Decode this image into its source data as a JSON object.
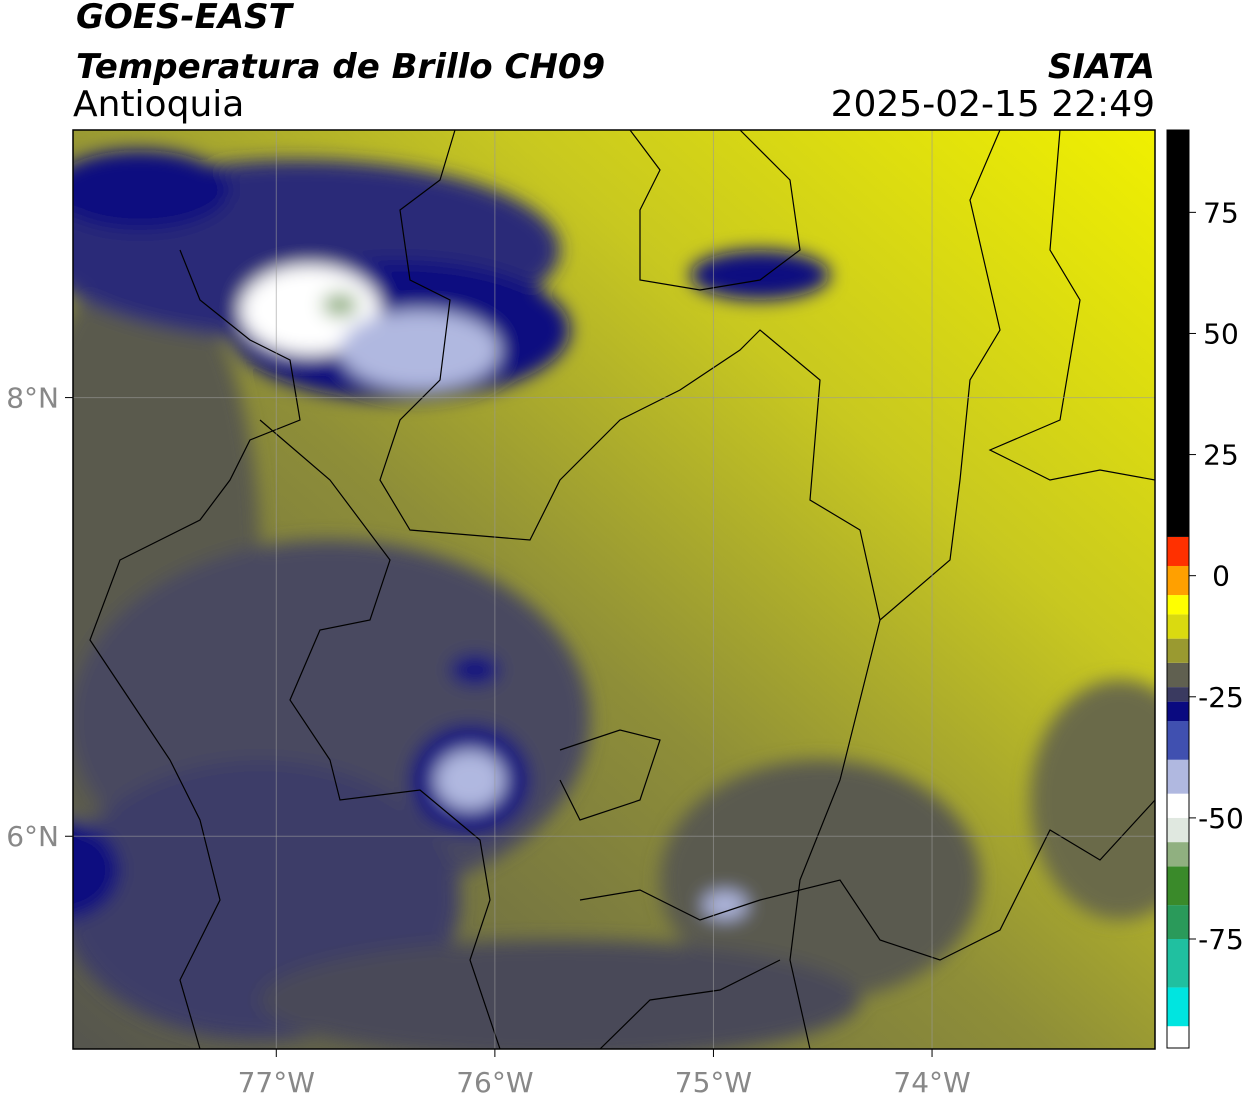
{
  "header": {
    "title": "GOES-EAST",
    "subtitle": "Temperatura de Brillo CH09",
    "region": "Antioquia",
    "agency": "SIATA",
    "datetime": "2025-02-15 22:49"
  },
  "map": {
    "xlim": [
      -77.93,
      -72.98
    ],
    "ylim": [
      5.03,
      9.22
    ],
    "xticks": [
      {
        "value": -77,
        "label": "77°W"
      },
      {
        "value": -76,
        "label": "76°W"
      },
      {
        "value": -75,
        "label": "75°W"
      },
      {
        "value": -74,
        "label": "74°W"
      }
    ],
    "yticks": [
      {
        "value": 6,
        "label": "6°N"
      },
      {
        "value": 8,
        "label": "8°N"
      }
    ],
    "grid": true
  },
  "colorbar": {
    "lim": [
      -97.5,
      92
    ],
    "ticks": [
      -75,
      -50,
      -25,
      0,
      25,
      50,
      75
    ],
    "stops": [
      {
        "value": -97.5,
        "color": "#ffffff"
      },
      {
        "value": -93,
        "color": "#00e5e0"
      },
      {
        "value": -85,
        "color": "#20c0a0"
      },
      {
        "value": -75,
        "color": "#2a9a5a"
      },
      {
        "value": -68,
        "color": "#3a8a2a"
      },
      {
        "value": -60,
        "color": "#90b080"
      },
      {
        "value": -55,
        "color": "#e0e8e0"
      },
      {
        "value": -50,
        "color": "#ffffff"
      },
      {
        "value": -45,
        "color": "#b0b8e0"
      },
      {
        "value": -38,
        "color": "#4050b0"
      },
      {
        "value": -30,
        "color": "#0a0a80"
      },
      {
        "value": -26,
        "color": "#3a3a60"
      },
      {
        "value": -23,
        "color": "#606050"
      },
      {
        "value": -18,
        "color": "#9a9a30"
      },
      {
        "value": -13,
        "color": "#dada10"
      },
      {
        "value": -8,
        "color": "#ffff00"
      },
      {
        "value": -4,
        "color": "#ffa000"
      },
      {
        "value": 2,
        "color": "#ff3000"
      },
      {
        "value": 8,
        "color": "#000000"
      }
    ]
  }
}
